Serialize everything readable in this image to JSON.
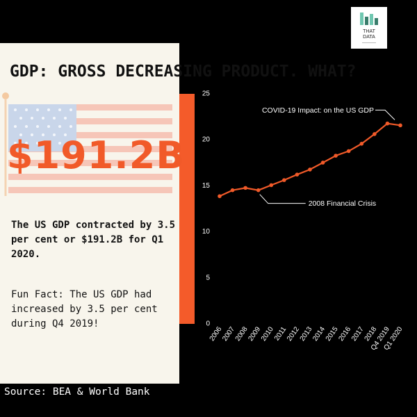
{
  "headline": "GDP: GROSS DECREASING PRODUCT. WHAT?",
  "big_amount": "$191.2B",
  "main_fact": "The US GDP contracted by 3.5 per cent or $191.2B for Q1 2020.",
  "fun_fact": "Fun Fact: The US GDP had increased by 3.5 per cent during Q4 2019!",
  "source": "Source: BEA & World Bank",
  "logo": {
    "line1": "THAT",
    "line2": "DATA"
  },
  "colors": {
    "accent": "#f15a29",
    "card": "#f8f5ec",
    "background": "#000000"
  },
  "chart_data": {
    "type": "line",
    "categories": [
      "2006",
      "2007",
      "2008",
      "2009",
      "2010",
      "2011",
      "2012",
      "2013",
      "2014",
      "2015",
      "2016",
      "2017",
      "2018",
      "Q4 2019",
      "Q1 2020"
    ],
    "values": [
      13.8,
      14.45,
      14.7,
      14.45,
      15.0,
      15.55,
      16.15,
      16.7,
      17.45,
      18.2,
      18.7,
      19.5,
      20.55,
      21.7,
      21.5
    ],
    "ylim": [
      0,
      25
    ],
    "yticks": [
      0,
      5,
      10,
      15,
      20,
      25
    ],
    "grid": false,
    "annotations": [
      {
        "text": "COVID-19 Impact: on the US GDP",
        "category": "Q1 2020"
      },
      {
        "text": "2008 Financial Crisis",
        "category": "2009"
      }
    ]
  }
}
